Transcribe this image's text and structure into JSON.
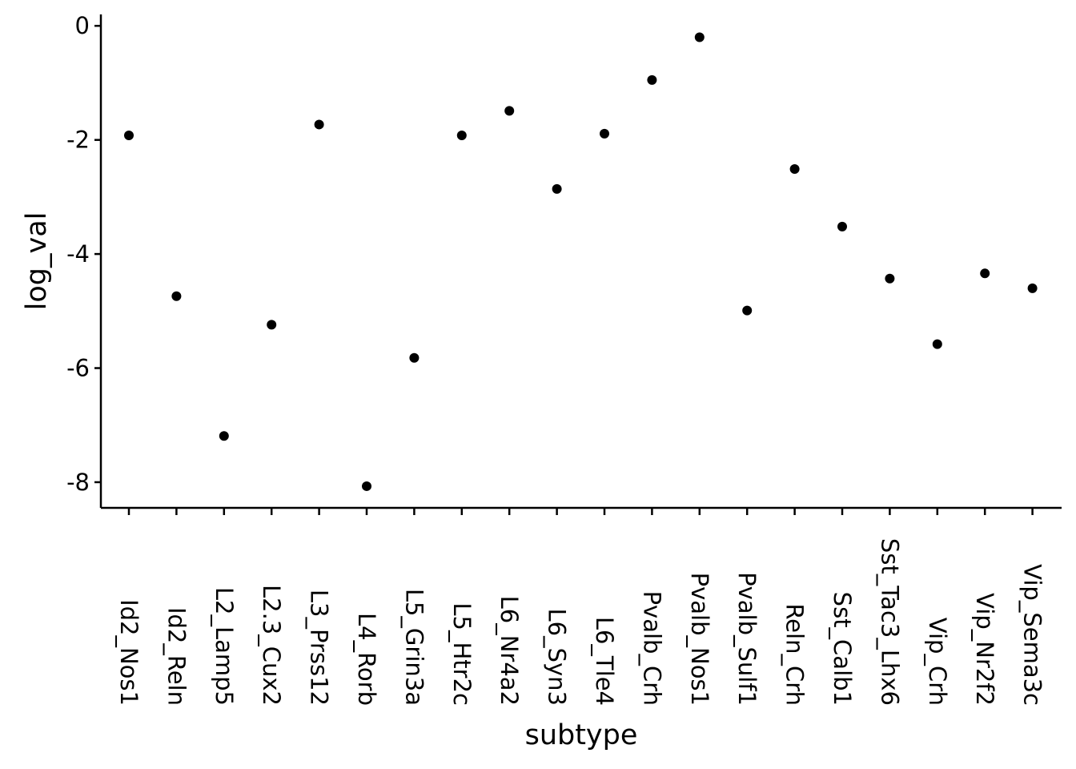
{
  "chart_data": {
    "type": "scatter",
    "title": "",
    "xlabel": "subtype",
    "ylabel": "log_val",
    "ylim": [
      -8.45,
      0.2
    ],
    "y_ticks": [
      0,
      -2,
      -4,
      -6,
      -8
    ],
    "y_tick_labels": [
      "0",
      "-2",
      "-4",
      "-6",
      "-8"
    ],
    "grid": false,
    "legend": "none",
    "point_color": "#000000",
    "categories": [
      "Id2_Nos1",
      "Id2_Reln",
      "L2_Lamp5",
      "L2.3_Cux2",
      "L3_Prss12",
      "L4_Rorb",
      "L5_Grin3a",
      "L5_Htr2c",
      "L6_Nr4a2",
      "L6_Syn3",
      "L6_Tle4",
      "Pvalb_Crh",
      "Pvalb_Nos1",
      "Pvalb_Sulf1",
      "Reln_Crh",
      "Sst_Calb1",
      "Sst_Tac3_Lhx6",
      "Vip_Crh",
      "Vip_Nr2f2",
      "Vip_Sema3c"
    ],
    "values": [
      -1.92,
      -4.74,
      -7.19,
      -5.24,
      -1.73,
      -8.07,
      -5.82,
      -1.92,
      -1.49,
      -2.86,
      -1.89,
      -0.95,
      -0.2,
      -4.99,
      -2.51,
      -3.52,
      -4.43,
      -5.58,
      -4.34,
      -4.6
    ]
  }
}
